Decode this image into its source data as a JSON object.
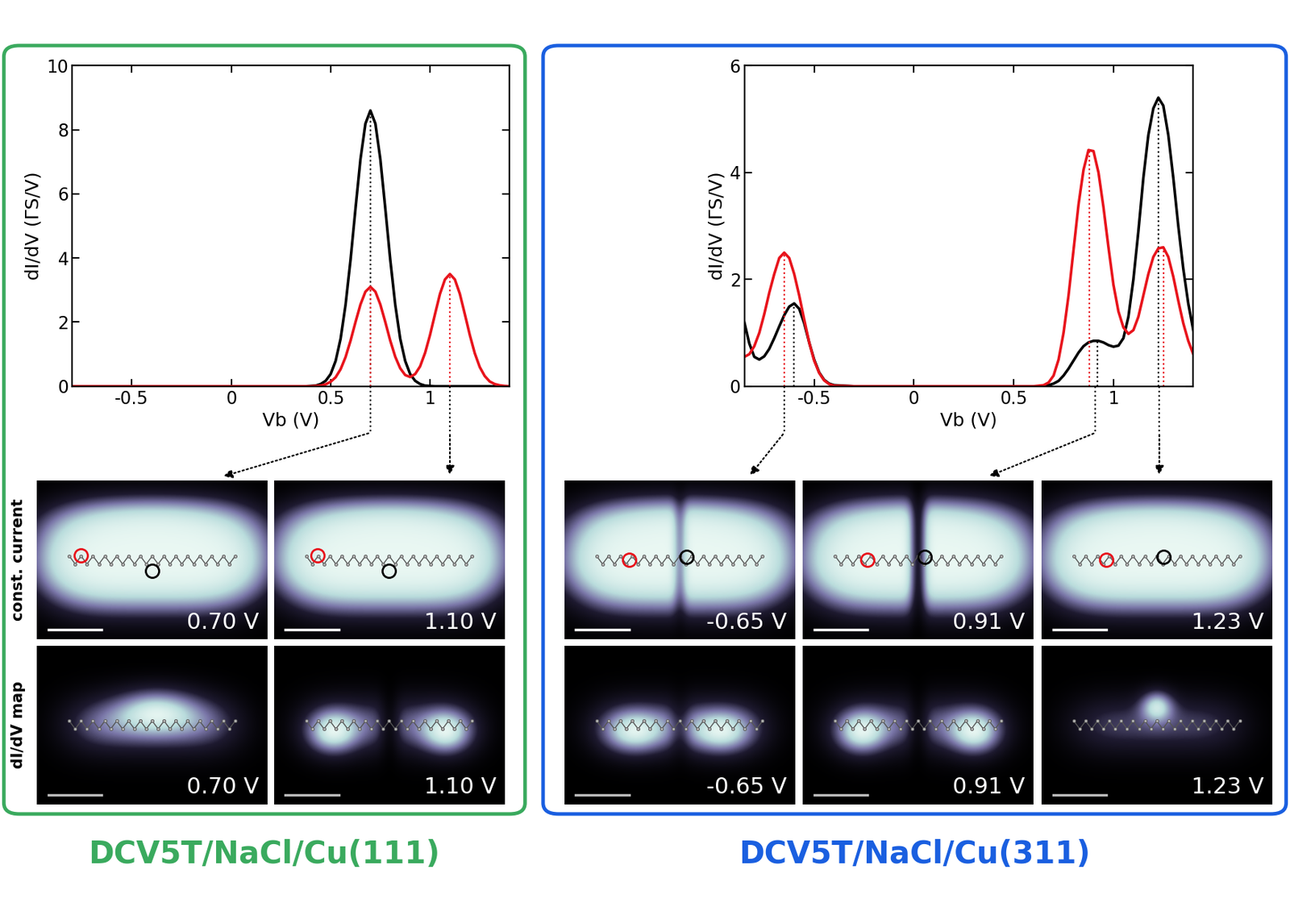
{
  "chart_data": [
    {
      "type": "line",
      "title": "DCV5T/NaCl/Cu(111)",
      "color": "#3aaa5e",
      "x_label": "Vb (V)",
      "y_label": "dI/dV (ΓS/V)",
      "xlim": [
        -0.8,
        1.4
      ],
      "ylim": [
        0,
        10
      ],
      "xticks": [
        -0.5,
        0,
        0.5,
        1
      ],
      "yticks": [
        0,
        2,
        4,
        6,
        8,
        10
      ],
      "grid": false,
      "x": [
        -0.8,
        0.3,
        0.35,
        0.375,
        0.4,
        0.425,
        0.45,
        0.475,
        0.5,
        0.525,
        0.55,
        0.575,
        0.6,
        0.625,
        0.65,
        0.675,
        0.7,
        0.725,
        0.75,
        0.775,
        0.8,
        0.825,
        0.85,
        0.875,
        0.9,
        0.925,
        0.95,
        0.975,
        1.0,
        1.025,
        1.05,
        1.075,
        1.1,
        1.125,
        1.15,
        1.175,
        1.2,
        1.225,
        1.25,
        1.275,
        1.3,
        1.325,
        1.35,
        1.375,
        1.4
      ],
      "series": [
        {
          "color": "#000000",
          "peaks": [
            {
              "x": 0.7,
              "y": 8.6
            }
          ],
          "values": [
            0,
            0,
            0,
            0,
            0.01,
            0.02,
            0.07,
            0.17,
            0.38,
            0.79,
            1.48,
            2.54,
            3.94,
            5.54,
            7.08,
            8.19,
            8.6,
            8.19,
            7.08,
            5.54,
            3.94,
            2.54,
            1.48,
            0.79,
            0.38,
            0.17,
            0.07,
            0.02,
            0.01,
            0,
            0,
            0,
            0,
            0,
            0,
            0,
            0,
            0,
            0,
            0,
            0,
            0,
            0,
            0,
            0
          ]
        },
        {
          "color": "#e8141c",
          "peaks": [
            {
              "x": 0.7,
              "y": 3.1
            },
            {
              "x": 1.1,
              "y": 3.5
            }
          ],
          "values": [
            0,
            0,
            0,
            0,
            0,
            0.01,
            0.02,
            0.06,
            0.14,
            0.28,
            0.53,
            0.91,
            1.42,
            2.0,
            2.55,
            2.95,
            3.1,
            2.95,
            2.55,
            2.0,
            1.42,
            0.92,
            0.56,
            0.35,
            0.29,
            0.38,
            0.62,
            1.04,
            1.6,
            2.25,
            2.88,
            3.33,
            3.5,
            3.33,
            2.88,
            2.25,
            1.6,
            1.03,
            0.6,
            0.32,
            0.15,
            0.07,
            0.03,
            0.01,
            0.0
          ]
        }
      ],
      "maps": [
        {
          "value": 0.7,
          "label": "0.70 V"
        },
        {
          "value": 1.1,
          "label": "1.10 V"
        }
      ]
    },
    {
      "type": "line",
      "title": "DCV5T/NaCl/Cu(311)",
      "color": "#1a5fe0",
      "x_label": "Vb (V)",
      "y_label": "dI/dV (ΓS/V)",
      "xlim": [
        -0.85,
        1.4
      ],
      "ylim": [
        0,
        6
      ],
      "xticks": [
        -0.5,
        0,
        0.5,
        1
      ],
      "yticks": [
        0,
        2,
        4,
        6
      ],
      "grid": false,
      "x": [
        -0.85,
        -0.825,
        -0.8,
        -0.775,
        -0.75,
        -0.725,
        -0.7,
        -0.675,
        -0.65,
        -0.625,
        -0.6,
        -0.575,
        -0.55,
        -0.525,
        -0.5,
        -0.475,
        -0.45,
        -0.425,
        -0.4,
        -0.3,
        0,
        0.5,
        0.6,
        0.625,
        0.65,
        0.675,
        0.7,
        0.725,
        0.75,
        0.775,
        0.8,
        0.825,
        0.85,
        0.875,
        0.9,
        0.925,
        0.95,
        0.975,
        1.0,
        1.025,
        1.05,
        1.075,
        1.1,
        1.125,
        1.15,
        1.175,
        1.2,
        1.225,
        1.25,
        1.275,
        1.3,
        1.325,
        1.35,
        1.375,
        1.4
      ],
      "series": [
        {
          "color": "#000000",
          "peaks": [
            {
              "x": -0.6,
              "y": 1.55
            },
            {
              "x": 0.92,
              "y": 0.85
            },
            {
              "x": 1.225,
              "y": 5.4
            }
          ],
          "values": [
            1.2,
            0.8,
            0.55,
            0.5,
            0.56,
            0.7,
            0.9,
            1.12,
            1.33,
            1.49,
            1.55,
            1.45,
            1.18,
            0.82,
            0.5,
            0.26,
            0.12,
            0.05,
            0.02,
            0,
            0,
            0,
            0,
            0,
            0.01,
            0.02,
            0.05,
            0.1,
            0.2,
            0.33,
            0.48,
            0.63,
            0.75,
            0.82,
            0.85,
            0.85,
            0.82,
            0.77,
            0.74,
            0.76,
            0.9,
            1.3,
            2.0,
            2.9,
            3.9,
            4.7,
            5.2,
            5.4,
            5.25,
            4.7,
            3.9,
            3.0,
            2.2,
            1.55,
            1.05
          ]
        },
        {
          "color": "#e8141c",
          "peaks": [
            {
              "x": -0.65,
              "y": 2.5
            },
            {
              "x": 0.88,
              "y": 4.42
            },
            {
              "x": 1.25,
              "y": 2.6
            }
          ],
          "values": [
            0.55,
            0.6,
            0.75,
            1.0,
            1.35,
            1.75,
            2.1,
            2.4,
            2.5,
            2.4,
            2.1,
            1.7,
            1.25,
            0.82,
            0.48,
            0.25,
            0.11,
            0.04,
            0.01,
            0,
            0,
            0,
            0,
            0.01,
            0.02,
            0.07,
            0.2,
            0.5,
            1.0,
            1.7,
            2.55,
            3.4,
            4.05,
            4.42,
            4.4,
            4.0,
            3.35,
            2.6,
            1.9,
            1.4,
            1.1,
            0.98,
            1.05,
            1.3,
            1.7,
            2.1,
            2.42,
            2.58,
            2.6,
            2.42,
            2.05,
            1.6,
            1.18,
            0.85,
            0.6
          ]
        }
      ],
      "maps": [
        {
          "value": -0.65,
          "label": "-0.65 V"
        },
        {
          "value": 0.91,
          "label": "0.91 V"
        },
        {
          "value": 1.23,
          "label": "1.23 V"
        }
      ]
    }
  ],
  "map_rows": [
    "const. current",
    "dI/dV map"
  ]
}
